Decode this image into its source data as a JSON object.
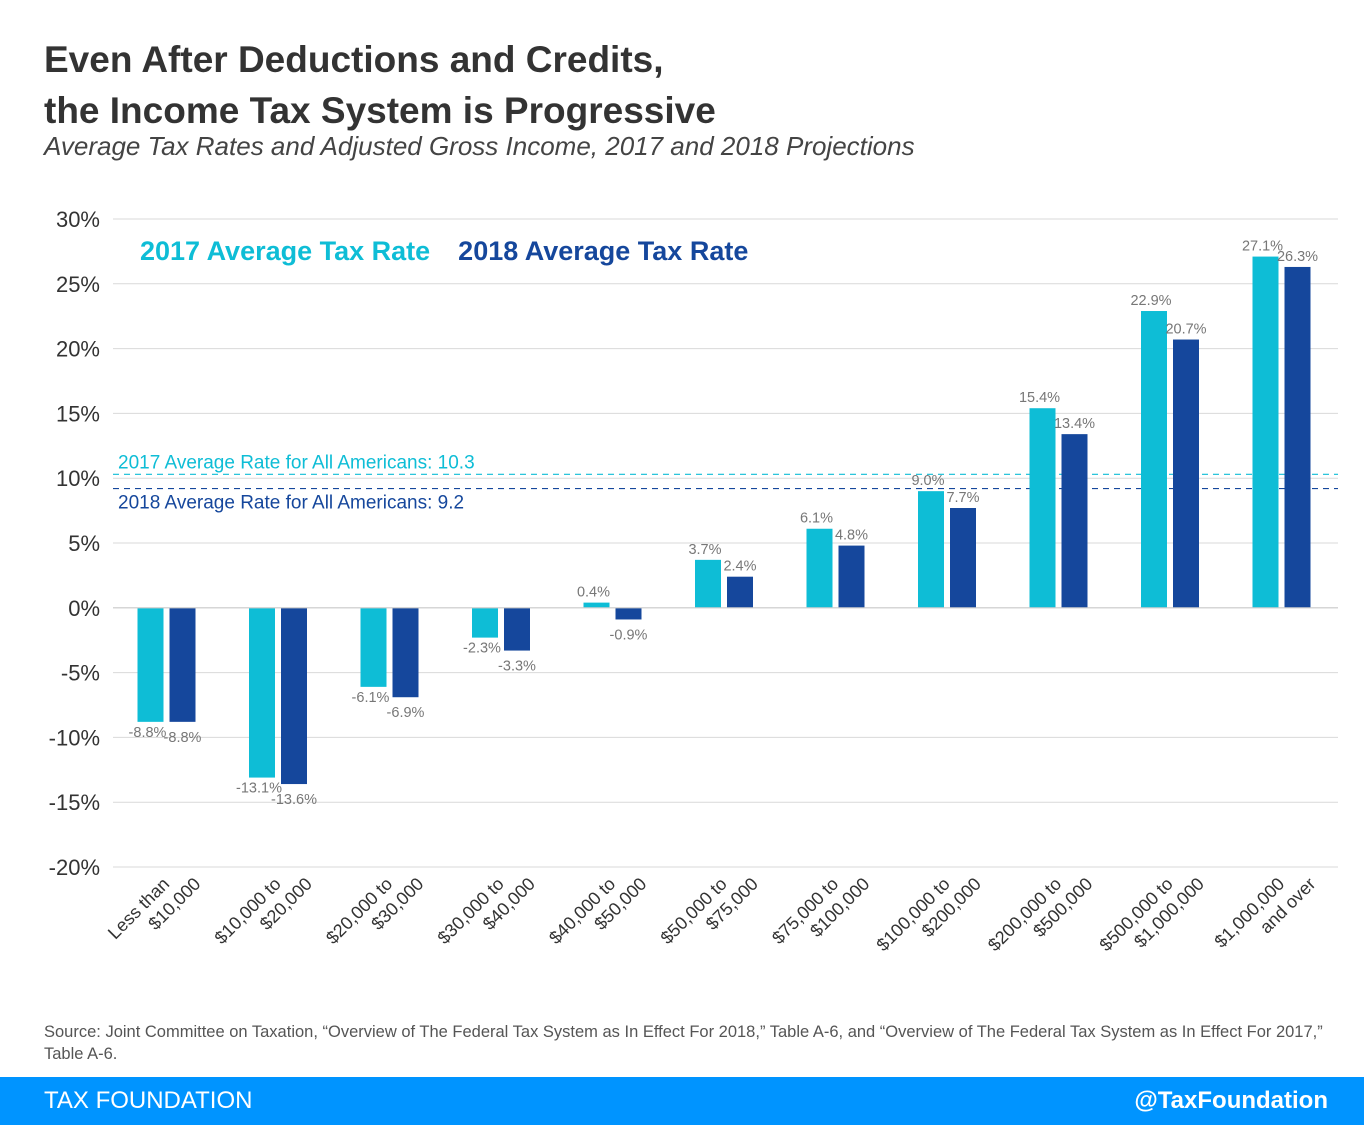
{
  "title_line1": "Even After Deductions and Credits,",
  "title_line2": "the Income Tax System is Progressive",
  "subtitle": "Average Tax Rates and Adjusted Gross Income, 2017 and 2018 Projections",
  "chart_data": {
    "type": "bar",
    "categories": [
      [
        "Less than",
        "$10,000"
      ],
      [
        "$10,000 to",
        "$20,000"
      ],
      [
        "$20,000 to",
        "$30,000"
      ],
      [
        "$30,000 to",
        "$40,000"
      ],
      [
        "$40,000 to",
        "$50,000"
      ],
      [
        "$50,000 to",
        "$75,000"
      ],
      [
        "$75,000 to",
        "$100,000"
      ],
      [
        "$100,000 to",
        "$200,000"
      ],
      [
        "$200,000 to",
        "$500,000"
      ],
      [
        "$500,000 to",
        "$1,000,000"
      ],
      [
        "$1,000,000",
        "and over"
      ]
    ],
    "series": [
      {
        "name": "2017 Average Tax Rate",
        "color": "#0ebdd6",
        "values": [
          -8.8,
          -13.1,
          -6.1,
          -2.3,
          0.4,
          3.7,
          6.1,
          9.0,
          15.4,
          22.9,
          27.1
        ],
        "labels": [
          "-8.8%",
          "-13.1%",
          "-6.1%",
          "-2.3%",
          "0.4%",
          "3.7%",
          "6.1%",
          "9.0%",
          "15.4%",
          "22.9%",
          "27.1%"
        ]
      },
      {
        "name": "2018 Average Tax Rate",
        "color": "#15479c",
        "values": [
          -8.8,
          -13.6,
          -6.9,
          -3.3,
          -0.9,
          2.4,
          4.8,
          7.7,
          13.4,
          20.7,
          26.3
        ],
        "labels": [
          "-8.8%",
          "-13.6%",
          "-6.9%",
          "-3.3%",
          "-0.9%",
          "2.4%",
          "4.8%",
          "7.7%",
          "13.4%",
          "20.7%",
          "26.3%"
        ]
      }
    ],
    "ylim": [
      -20,
      30
    ],
    "yticks": [
      30,
      25,
      20,
      15,
      10,
      5,
      0,
      -5,
      -10,
      -15,
      -20
    ],
    "ytick_labels": [
      "30%",
      "25%",
      "20%",
      "15%",
      "10%",
      "5%",
      "0%",
      "-5%",
      "-10%",
      "-15%",
      "-20%"
    ],
    "grid": true,
    "legend_placement": "top-left",
    "reference_lines": [
      {
        "value": 10.3,
        "label": "2017 Average Rate for All Americans: 10.3",
        "color": "#0ebdd6"
      },
      {
        "value": 9.2,
        "label": "2018 Average Rate for All Americans: 9.2",
        "color": "#15479c"
      }
    ]
  },
  "source": "Source: Joint Committee on Taxation, “Overview of The Federal Tax System as In Effect For 2018,” Table A-6, and “Overview of The Federal Tax System as In Effect For 2017,” Table A-6.",
  "footer": {
    "brand": "TAX FOUNDATION",
    "handle": "@TaxFoundation"
  }
}
